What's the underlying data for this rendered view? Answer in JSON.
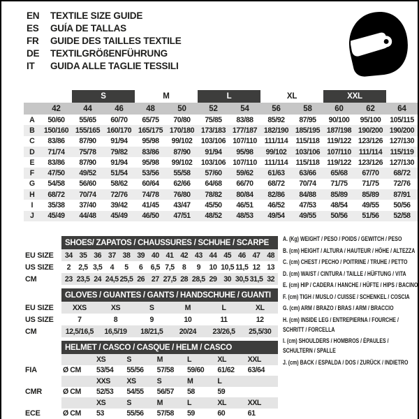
{
  "header": {
    "languages": [
      {
        "code": "EN",
        "title": "TEXTILE SIZE GUIDE"
      },
      {
        "code": "ES",
        "title": "GUÍA DE TALLAS"
      },
      {
        "code": "FR",
        "title": "GUIDE DES TAILLES TEXTILE"
      },
      {
        "code": "DE",
        "title": "TEXTILGRÖßENFÜHRUNG"
      },
      {
        "code": "IT",
        "title": "GUIDA ALLE TAGLIE TESSILI"
      }
    ],
    "helmet_icon": "racing-helmet-icon"
  },
  "colors": {
    "dark_bar": "#3d3d3c",
    "size_band": "#c6c6c6",
    "row_stripe": "#ececec",
    "sub_shade": "#e4e4e4",
    "text": "#1d1d1b"
  },
  "size_table": {
    "groups": [
      {
        "label": "",
        "span": 1,
        "dark": false
      },
      {
        "label": "S",
        "span": 2,
        "dark": true
      },
      {
        "label": "M",
        "span": 2,
        "dark": false
      },
      {
        "label": "L",
        "span": 2,
        "dark": true
      },
      {
        "label": "XL",
        "span": 2,
        "dark": false
      },
      {
        "label": "XXL",
        "span": 2,
        "dark": true
      },
      {
        "label": "",
        "span": 1,
        "dark": false
      }
    ],
    "sizes": [
      "42",
      "44",
      "46",
      "48",
      "50",
      "52",
      "54",
      "56",
      "58",
      "60",
      "62",
      "64"
    ],
    "rows": [
      {
        "key": "A",
        "values": [
          "50/60",
          "55/65",
          "60/70",
          "65/75",
          "70/80",
          "75/85",
          "83/88",
          "85/92",
          "87/95",
          "90/100",
          "95/100",
          "105/115"
        ]
      },
      {
        "key": "B",
        "values": [
          "150/160",
          "155/165",
          "160/170",
          "165/175",
          "170/180",
          "173/183",
          "177/187",
          "182/190",
          "185/195",
          "187/198",
          "190/200",
          "190/200"
        ]
      },
      {
        "key": "C",
        "values": [
          "83/86",
          "87/90",
          "91/94",
          "95/98",
          "99/102",
          "103/106",
          "107/110",
          "111/114",
          "115/118",
          "119/122",
          "123/126",
          "127/130"
        ]
      },
      {
        "key": "D",
        "values": [
          "71/74",
          "75/78",
          "79/82",
          "83/86",
          "87/90",
          "91/94",
          "95/98",
          "99/102",
          "103/106",
          "107/110",
          "111/114",
          "115/119"
        ]
      },
      {
        "key": "E",
        "values": [
          "83/86",
          "87/90",
          "91/94",
          "95/98",
          "99/102",
          "103/106",
          "107/110",
          "111/114",
          "115/118",
          "119/122",
          "123/126",
          "127/130"
        ]
      },
      {
        "key": "F",
        "values": [
          "47/50",
          "49/52",
          "51/54",
          "53/56",
          "55/58",
          "57/60",
          "59/62",
          "61/63",
          "63/66",
          "65/68",
          "67/70",
          "68/72"
        ]
      },
      {
        "key": "G",
        "values": [
          "54/58",
          "56/60",
          "58/62",
          "60/64",
          "62/66",
          "64/68",
          "66/70",
          "68/72",
          "70/74",
          "71/75",
          "71/75",
          "72/76"
        ]
      },
      {
        "key": "H",
        "values": [
          "68/72",
          "70/74",
          "72/76",
          "74/78",
          "76/80",
          "78/82",
          "80/84",
          "82/86",
          "84/88",
          "85/89",
          "85/89",
          "87/91"
        ]
      },
      {
        "key": "I",
        "values": [
          "35/38",
          "37/40",
          "39/42",
          "41/45",
          "43/47",
          "45/50",
          "46/51",
          "46/52",
          "47/53",
          "48/54",
          "49/55",
          "50/56"
        ]
      },
      {
        "key": "J",
        "values": [
          "45/49",
          "44/48",
          "45/49",
          "46/50",
          "47/51",
          "48/52",
          "48/53",
          "49/54",
          "49/55",
          "50/56",
          "51/56",
          "52/58"
        ]
      }
    ]
  },
  "shoes": {
    "title": "SHOES/ ZAPATOS / CHAUSSURES / SCHUHE / SCARPE",
    "rows": [
      {
        "label": "EU SIZE",
        "shade": true,
        "values": [
          "34",
          "35",
          "36",
          "37",
          "38",
          "39",
          "40",
          "41",
          "42",
          "43",
          "44",
          "45",
          "46",
          "47",
          "48"
        ]
      },
      {
        "label": "US SIZE",
        "shade": false,
        "values": [
          "2",
          "2,5",
          "3,5",
          "4",
          "5",
          "6",
          "6,5",
          "7,5",
          "8",
          "9",
          "10",
          "10,5",
          "11,5",
          "12",
          "13"
        ]
      },
      {
        "label": "CM",
        "shade": true,
        "values": [
          "23",
          "23,5",
          "24",
          "24,5",
          "25,5",
          "26",
          "27",
          "27,5",
          "28",
          "28,5",
          "29",
          "30",
          "30,5",
          "31,5",
          "32"
        ]
      }
    ]
  },
  "gloves": {
    "title": "GLOVES / GUANTES / GANTS / HANDSCHUHE / GUANTI",
    "rows": [
      {
        "label": "EU SIZE",
        "shade": true,
        "values": [
          "XXS",
          "XS",
          "S",
          "M",
          "L",
          "XL"
        ]
      },
      {
        "label": "US SIZE",
        "shade": false,
        "values": [
          "7",
          "8",
          "9",
          "10",
          "11",
          "12"
        ]
      },
      {
        "label": "CM",
        "shade": true,
        "values": [
          "12,5/16,5",
          "16,5/19",
          "18/21,5",
          "20/24",
          "23/26,5",
          "25,5/30"
        ]
      }
    ]
  },
  "helmet": {
    "title": "HELMET / CASCO / CASQUE / HELM / CASCO",
    "rows": [
      {
        "label": "",
        "unit": "",
        "shade": true,
        "values": [
          "XS",
          "S",
          "M",
          "L",
          "XL",
          "XXL"
        ]
      },
      {
        "label": "FIA",
        "unit": "Ø CM",
        "shade": false,
        "values": [
          "53/54",
          "55/56",
          "57/58",
          "59/60",
          "61/62",
          "63/64"
        ]
      },
      {
        "label": "",
        "unit": "",
        "shade": true,
        "values": [
          "XXS",
          "XS",
          "S",
          "M",
          "L",
          ""
        ]
      },
      {
        "label": "CMR",
        "unit": "Ø CM",
        "shade": false,
        "values": [
          "52/53",
          "54/55",
          "56/57",
          "58",
          "59",
          ""
        ]
      },
      {
        "label": "",
        "unit": "",
        "shade": true,
        "values": [
          "XS",
          "S",
          "M",
          "L",
          "XL",
          "XXL"
        ]
      },
      {
        "label": "ECE",
        "unit": "Ø CM",
        "shade": false,
        "values": [
          "53",
          "55/56",
          "57/58",
          "59",
          "60",
          "61"
        ]
      }
    ]
  },
  "legend": {
    "items": [
      {
        "lines": [
          "A. (Kg) WEIGHT / PESO / POIDS / GEWITCH / PESO"
        ]
      },
      {
        "lines": [
          "B. (cm) HEIGHT / ALTURA / HAUTEUR / HÖHE / ALTEZZA"
        ]
      },
      {
        "lines": [
          "C. (cm) CHEST / PECHO / POITRINE / TRUHE / PETTO"
        ]
      },
      {
        "lines": [
          "D. (cm) WAIST / CINTURA / TAILLE / HÜFTUNG / VITA"
        ]
      },
      {
        "lines": [
          "E. (cm) HIP / CADERA / HANCHE / HÜFTE / HIPS / BACINO"
        ]
      },
      {
        "lines": [
          "F. (cm) TIGH / MUSLO / CUISSE / SCHENKEL / COSCIA"
        ]
      },
      {
        "lines": [
          "G. (cm) ARM / BRAZO / BRAS / ARM / BRACCIO"
        ]
      },
      {
        "lines": [
          "H. (cm) INSIDE LEG / ENTREPIERNA / FOURCHE /",
          "SCHRITT / FORCELLA"
        ]
      },
      {
        "lines": [
          "I. (cm) SHOULDERS / HOMBROS / ÉPAULES /",
          "SCHULTERN / SPALLE"
        ]
      },
      {
        "lines": [
          "J. (cm) BACK / ESPALDA / DOS / ZURÜCK / INDIETRO"
        ]
      }
    ]
  }
}
